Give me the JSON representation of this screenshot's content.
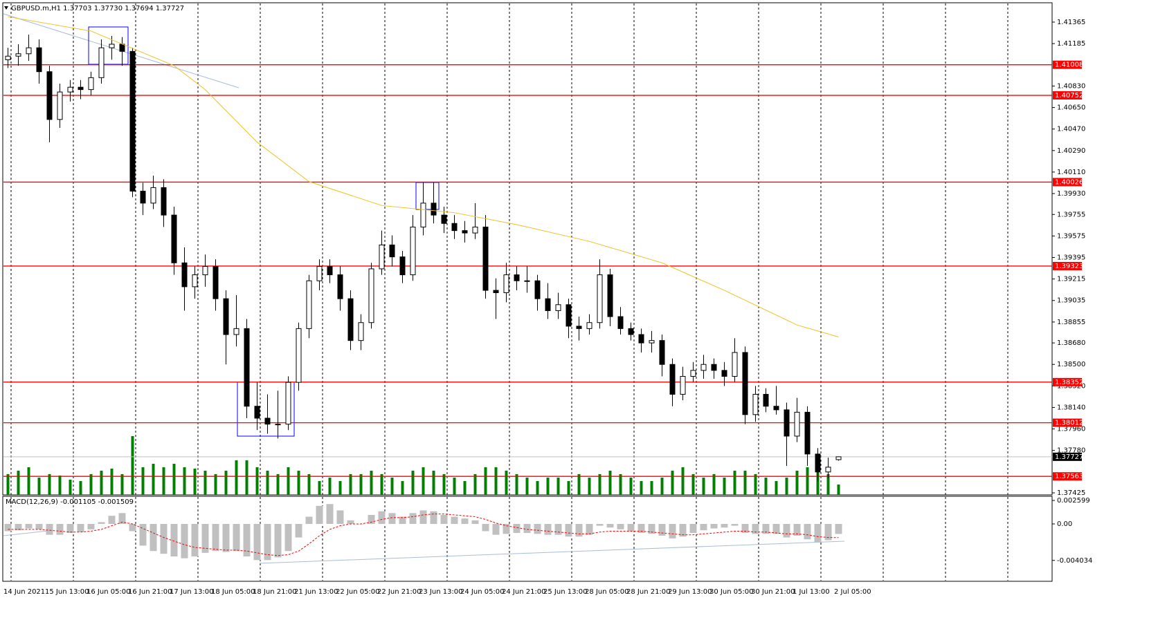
{
  "header": "GBPUSD.m,H1 1.37703 1.37730 1.37694 1.37727",
  "chart_data": [
    {
      "type": "candlestick",
      "ylim": [
        1.37408,
        1.41521
      ],
      "yticks": [
        1.41365,
        1.41185,
        {
          "value": 1.4083,
          "label": "1.40830"
        },
        {
          "value": 1.4065,
          "label": "1.40650"
        },
        {
          "value": 1.4047,
          "label": "1.40470"
        },
        {
          "value": 1.4029,
          "label": "1.40290"
        },
        {
          "value": 1.4011,
          "label": "1.40110"
        },
        {
          "value": 1.3993,
          "label": "1.39930"
        },
        1.39755,
        1.39575,
        1.39395,
        1.39215,
        1.39035,
        1.38855,
        {
          "value": 1.3868,
          "label": "1.38680"
        },
        {
          "value": 1.385,
          "label": "1.38500"
        },
        {
          "value": 1.3832,
          "label": "1.38320"
        },
        {
          "value": 1.3814,
          "label": "1.38140"
        },
        {
          "value": 1.3796,
          "label": "1.37960"
        },
        {
          "value": 1.3778,
          "label": "1.37780"
        },
        1.37425
      ],
      "levels": [
        1.41008,
        1.40752,
        1.40026,
        1.39323,
        1.38352,
        1.38012,
        1.37563
      ],
      "level_color": "#ff0000",
      "current_price": 1.37727,
      "ohlc": [
        [
          1.4105,
          1.4115,
          1.4098,
          1.4108
        ],
        [
          1.4108,
          1.4118,
          1.41,
          1.411
        ],
        [
          1.411,
          1.4126,
          1.4104,
          1.4115
        ],
        [
          1.4115,
          1.4122,
          1.4085,
          1.4095
        ],
        [
          1.4095,
          1.41,
          1.4036,
          1.4055
        ],
        [
          1.4055,
          1.4085,
          1.4048,
          1.4078
        ],
        [
          1.4078,
          1.4088,
          1.407,
          1.4082
        ],
        [
          1.4082,
          1.4088,
          1.4072,
          1.408
        ],
        [
          1.408,
          1.4095,
          1.4075,
          1.409
        ],
        [
          1.409,
          1.4122,
          1.4085,
          1.4115
        ],
        [
          1.4115,
          1.4125,
          1.4105,
          1.4118
        ],
        [
          1.4118,
          1.4124,
          1.41,
          1.4112
        ],
        [
          1.4112,
          1.4115,
          1.399,
          1.3995
        ],
        [
          1.3995,
          1.4002,
          1.3975,
          1.3985
        ],
        [
          1.3985,
          1.4008,
          1.398,
          1.3998
        ],
        [
          1.3998,
          1.4005,
          1.3965,
          1.3975
        ],
        [
          1.3975,
          1.3982,
          1.3925,
          1.3935
        ],
        [
          1.3935,
          1.3948,
          1.3895,
          1.3915
        ],
        [
          1.3915,
          1.3932,
          1.3905,
          1.3925
        ],
        [
          1.3925,
          1.3942,
          1.3915,
          1.3932
        ],
        [
          1.3932,
          1.3938,
          1.3895,
          1.3905
        ],
        [
          1.3905,
          1.3912,
          1.385,
          1.3875
        ],
        [
          1.3875,
          1.3908,
          1.3865,
          1.388
        ],
        [
          1.388,
          1.3888,
          1.3805,
          1.3815
        ],
        [
          1.3815,
          1.3835,
          1.3795,
          1.3805
        ],
        [
          1.3805,
          1.3825,
          1.3792,
          1.38
        ],
        [
          1.38,
          1.3828,
          1.3788,
          1.38
        ],
        [
          1.38,
          1.384,
          1.3795,
          1.3835
        ],
        [
          1.3835,
          1.3885,
          1.3828,
          1.388
        ],
        [
          1.388,
          1.3925,
          1.3872,
          1.392
        ],
        [
          1.392,
          1.3938,
          1.3912,
          1.3932
        ],
        [
          1.3932,
          1.3938,
          1.3918,
          1.3925
        ],
        [
          1.3925,
          1.3932,
          1.3895,
          1.3905
        ],
        [
          1.3905,
          1.3912,
          1.3862,
          1.387
        ],
        [
          1.387,
          1.3892,
          1.3862,
          1.3885
        ],
        [
          1.3885,
          1.3935,
          1.388,
          1.393
        ],
        [
          1.393,
          1.3962,
          1.3925,
          1.395
        ],
        [
          1.395,
          1.3958,
          1.3932,
          1.394
        ],
        [
          1.394,
          1.3945,
          1.3918,
          1.3925
        ],
        [
          1.3925,
          1.3975,
          1.392,
          1.3965
        ],
        [
          1.3965,
          1.4002,
          1.3958,
          1.3985
        ],
        [
          1.3985,
          1.4002,
          1.3968,
          1.3975
        ],
        [
          1.3975,
          1.3982,
          1.396,
          1.3968
        ],
        [
          1.3968,
          1.3975,
          1.3955,
          1.3962
        ],
        [
          1.3962,
          1.397,
          1.3952,
          1.396
        ],
        [
          1.396,
          1.3985,
          1.3955,
          1.3965
        ],
        [
          1.3965,
          1.3975,
          1.3905,
          1.3912
        ],
        [
          1.3912,
          1.3922,
          1.3888,
          1.391
        ],
        [
          1.391,
          1.3935,
          1.3902,
          1.3925
        ],
        [
          1.3925,
          1.3932,
          1.3912,
          1.392
        ],
        [
          1.392,
          1.3932,
          1.391,
          1.392
        ],
        [
          1.392,
          1.3925,
          1.3895,
          1.3905
        ],
        [
          1.3905,
          1.3918,
          1.3888,
          1.3895
        ],
        [
          1.3895,
          1.391,
          1.3888,
          1.39
        ],
        [
          1.39,
          1.3905,
          1.3872,
          1.3882
        ],
        [
          1.3882,
          1.389,
          1.387,
          1.388
        ],
        [
          1.388,
          1.3892,
          1.3875,
          1.3885
        ],
        [
          1.3885,
          1.3938,
          1.388,
          1.3925
        ],
        [
          1.3925,
          1.393,
          1.3882,
          1.389
        ],
        [
          1.389,
          1.3898,
          1.3875,
          1.388
        ],
        [
          1.388,
          1.3885,
          1.387,
          1.3875
        ],
        [
          1.3875,
          1.388,
          1.386,
          1.3868
        ],
        [
          1.3868,
          1.3878,
          1.386,
          1.387
        ],
        [
          1.387,
          1.3875,
          1.384,
          1.385
        ],
        [
          1.385,
          1.3855,
          1.3815,
          1.3825
        ],
        [
          1.3825,
          1.3848,
          1.382,
          1.384
        ],
        [
          1.384,
          1.3852,
          1.3835,
          1.3845
        ],
        [
          1.3845,
          1.3858,
          1.3838,
          1.385
        ],
        [
          1.385,
          1.3855,
          1.3838,
          1.3845
        ],
        [
          1.3845,
          1.3852,
          1.3832,
          1.384
        ],
        [
          1.384,
          1.3872,
          1.3835,
          1.386
        ],
        [
          1.386,
          1.3865,
          1.38,
          1.3808
        ],
        [
          1.3808,
          1.3832,
          1.3802,
          1.3825
        ],
        [
          1.3825,
          1.383,
          1.381,
          1.3815
        ],
        [
          1.3815,
          1.3832,
          1.3808,
          1.3812
        ],
        [
          1.3812,
          1.3818,
          1.3765,
          1.379
        ],
        [
          1.379,
          1.3822,
          1.3785,
          1.381
        ],
        [
          1.381,
          1.3815,
          1.3765,
          1.3775
        ],
        [
          1.3775,
          1.378,
          1.3752,
          1.376
        ],
        [
          1.376,
          1.3772,
          1.3755,
          1.3764
        ],
        [
          1.37703,
          1.3773,
          1.37694,
          1.37727
        ]
      ],
      "ma": {
        "color": "#f0c020",
        "x": [
          0,
          8,
          16,
          19,
          24,
          29,
          36,
          43,
          49,
          56,
          63,
          69,
          76,
          80
        ],
        "values": [
          1.4141,
          1.4129,
          1.41,
          1.408,
          1.4036,
          1.4003,
          1.3983,
          1.3977,
          1.3967,
          1.3953,
          1.3935,
          1.3912,
          1.3883,
          1.3873
        ]
      },
      "volume": {
        "color": "#008000",
        "values": [
          30,
          35,
          40,
          25,
          30,
          28,
          22,
          20,
          30,
          35,
          38,
          30,
          85,
          40,
          45,
          40,
          45,
          40,
          38,
          35,
          30,
          35,
          50,
          50,
          40,
          35,
          30,
          40,
          35,
          30,
          20,
          25,
          20,
          30,
          30,
          35,
          30,
          25,
          20,
          35,
          40,
          35,
          30,
          25,
          20,
          30,
          40,
          40,
          35,
          30,
          25,
          20,
          25,
          25,
          20,
          30,
          25,
          30,
          35,
          30,
          25,
          20,
          20,
          25,
          35,
          40,
          30,
          25,
          30,
          25,
          35,
          35,
          30,
          25,
          20,
          25,
          35,
          40,
          40,
          30,
          15
        ]
      },
      "time_labels": [
        "14 Jun 2021",
        "15 Jun 13:00",
        "16 Jun 05:00",
        "16 Jun 21:00",
        "17 Jun 13:00",
        "18 Jun 05:00",
        "18 Jun 21:00",
        "21 Jun 13:00",
        "22 Jun 05:00",
        "22 Jun 21:00",
        "23 Jun 13:00",
        "24 Jun 05:00",
        "24 Jun 21:00",
        "25 Jun 13:00",
        "28 Jun 05:00",
        "28 Jun 21:00",
        "29 Jun 13:00",
        "30 Jun 05:00",
        "30 Jun 21:00",
        "1 Jul 13:00",
        "2 Jul 05:00"
      ]
    },
    {
      "type": "macd",
      "title": "MACD(12,26,9) -0.001105 -0.001509",
      "ylim": [
        -0.00627,
        0.00306
      ],
      "yticks": [
        0.002599,
        {
          "value": 0,
          "label": "0.00"
        },
        -0.004034
      ],
      "histogram": {
        "color": "#c0c0c0",
        "values": [
          -0.0008,
          -0.0007,
          -0.0005,
          -0.0006,
          -0.0012,
          -0.0012,
          -0.001,
          -0.0009,
          -0.0006,
          0.0002,
          0.0009,
          0.0012,
          -0.0008,
          -0.0024,
          -0.003,
          -0.0033,
          -0.0036,
          -0.0038,
          -0.0036,
          -0.0032,
          -0.003,
          -0.0031,
          -0.003,
          -0.0036,
          -0.004,
          -0.004,
          -0.0037,
          -0.003,
          -0.0015,
          0.0008,
          0.002,
          0.0022,
          0.0015,
          0.0004,
          0,
          0.001,
          0.0014,
          0.0012,
          0.0008,
          0.0012,
          0.0015,
          0.0014,
          0.001,
          0.0008,
          0.0006,
          0.0004,
          -0.0008,
          -0.0012,
          -0.0011,
          -0.001,
          -0.001,
          -0.0011,
          -0.0012,
          -0.0012,
          -0.0014,
          -0.0014,
          -0.0012,
          -0.0002,
          -0.0004,
          -0.0006,
          -0.0008,
          -0.001,
          -0.0011,
          -0.0013,
          -0.0016,
          -0.0014,
          -0.001,
          -0.0007,
          -0.0005,
          -0.0004,
          -0.0002,
          -0.001,
          -0.0011,
          -0.0011,
          -0.0011,
          -0.0015,
          -0.0013,
          -0.0017,
          -0.002,
          -0.0018,
          -0.001105
        ]
      },
      "signal": {
        "color": "#ff0000",
        "values": [
          -0.0006,
          -0.0006,
          -0.0006,
          -0.0006,
          -0.0007,
          -0.0008,
          -0.0009,
          -0.0009,
          -0.0008,
          -0.0006,
          -0.0002,
          0.0002,
          0,
          -0.0005,
          -0.001,
          -0.0015,
          -0.0019,
          -0.0023,
          -0.0026,
          -0.0027,
          -0.0028,
          -0.0029,
          -0.0029,
          -0.003,
          -0.0032,
          -0.0034,
          -0.0035,
          -0.0034,
          -0.003,
          -0.0022,
          -0.0013,
          -0.0006,
          -0.0002,
          0,
          0,
          0.0002,
          0.0005,
          0.0007,
          0.0007,
          0.0008,
          0.001,
          0.0011,
          0.0011,
          0.001,
          0.0009,
          0.0008,
          0.0005,
          0.0001,
          -0.0002,
          -0.0004,
          -0.0006,
          -0.0007,
          -0.0008,
          -0.0009,
          -0.001,
          -0.0011,
          -0.0011,
          -0.0009,
          -0.0008,
          -0.0008,
          -0.0008,
          -0.0008,
          -0.0009,
          -0.001,
          -0.0011,
          -0.0012,
          -0.0012,
          -0.0011,
          -0.001,
          -0.0009,
          -0.0008,
          -0.0008,
          -0.0009,
          -0.0009,
          -0.001,
          -0.0011,
          -0.0011,
          -0.0012,
          -0.0014,
          -0.0015,
          -0.001509
        ]
      }
    }
  ]
}
